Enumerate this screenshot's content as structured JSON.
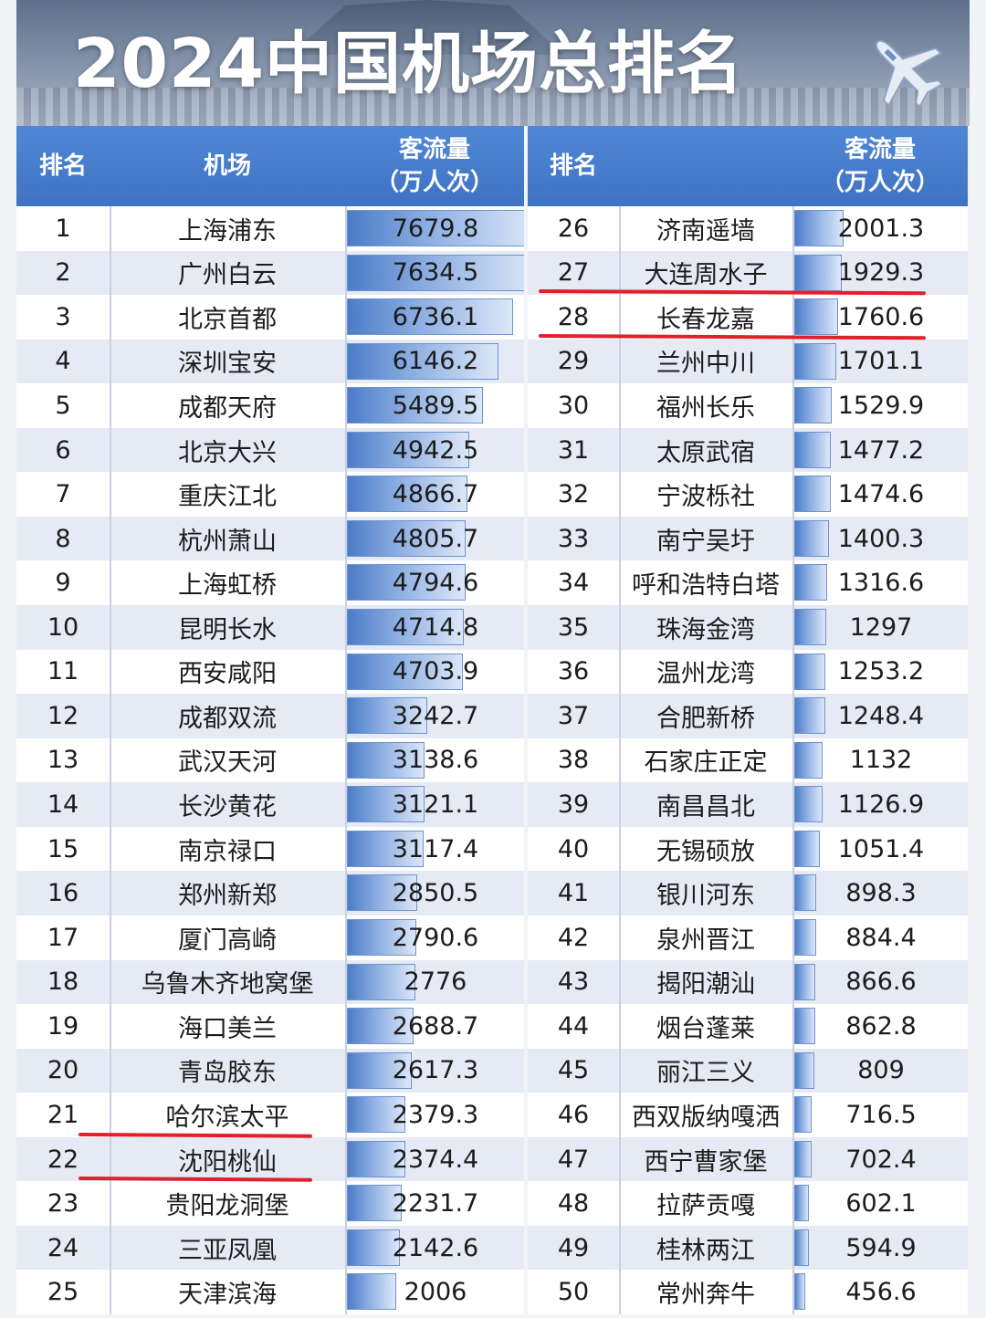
{
  "title": "2024中国机场总排名",
  "title_icon": "airplane-icon",
  "headers": {
    "rank": "排名",
    "airport": "机场",
    "traffic_line1": "客流量",
    "traffic_line2": "（万人次）"
  },
  "colors": {
    "header": "#4a7fd0",
    "bar": "#4b7cc8",
    "highlight": "#e0202a"
  },
  "highlighted_ranks": [
    21,
    22,
    27,
    28
  ],
  "chart_data": {
    "type": "table",
    "title": "2024中国机场总排名",
    "columns": [
      "排名",
      "机场",
      "客流量（万人次）"
    ],
    "unit": "万人次",
    "rows": [
      {
        "rank": "1",
        "airport": "上海浦东",
        "traffic": "7679.8"
      },
      {
        "rank": "2",
        "airport": "广州白云",
        "traffic": "7634.5"
      },
      {
        "rank": "3",
        "airport": "北京首都",
        "traffic": "6736.1"
      },
      {
        "rank": "4",
        "airport": "深圳宝安",
        "traffic": "6146.2"
      },
      {
        "rank": "5",
        "airport": "成都天府",
        "traffic": "5489.5"
      },
      {
        "rank": "6",
        "airport": "北京大兴",
        "traffic": "4942.5"
      },
      {
        "rank": "7",
        "airport": "重庆江北",
        "traffic": "4866.7"
      },
      {
        "rank": "8",
        "airport": "杭州萧山",
        "traffic": "4805.7"
      },
      {
        "rank": "9",
        "airport": "上海虹桥",
        "traffic": "4794.6"
      },
      {
        "rank": "10",
        "airport": "昆明长水",
        "traffic": "4714.8"
      },
      {
        "rank": "11",
        "airport": "西安咸阳",
        "traffic": "4703.9"
      },
      {
        "rank": "12",
        "airport": "成都双流",
        "traffic": "3242.7"
      },
      {
        "rank": "13",
        "airport": "武汉天河",
        "traffic": "3138.6"
      },
      {
        "rank": "14",
        "airport": "长沙黄花",
        "traffic": "3121.1"
      },
      {
        "rank": "15",
        "airport": "南京禄口",
        "traffic": "3117.4"
      },
      {
        "rank": "16",
        "airport": "郑州新郑",
        "traffic": "2850.5"
      },
      {
        "rank": "17",
        "airport": "厦门高崎",
        "traffic": "2790.6"
      },
      {
        "rank": "18",
        "airport": "乌鲁木齐地窝堡",
        "traffic": "2776"
      },
      {
        "rank": "19",
        "airport": "海口美兰",
        "traffic": "2688.7"
      },
      {
        "rank": "20",
        "airport": "青岛胶东",
        "traffic": "2617.3"
      },
      {
        "rank": "21",
        "airport": "哈尔滨太平",
        "traffic": "2379.3"
      },
      {
        "rank": "22",
        "airport": "沈阳桃仙",
        "traffic": "2374.4"
      },
      {
        "rank": "23",
        "airport": "贵阳龙洞堡",
        "traffic": "2231.7"
      },
      {
        "rank": "24",
        "airport": "三亚凤凰",
        "traffic": "2142.6"
      },
      {
        "rank": "25",
        "airport": "天津滨海",
        "traffic": "2006"
      },
      {
        "rank": "26",
        "airport": "济南遥墙",
        "traffic": "2001.3"
      },
      {
        "rank": "27",
        "airport": "大连周水子",
        "traffic": "1929.3"
      },
      {
        "rank": "28",
        "airport": "长春龙嘉",
        "traffic": "1760.6"
      },
      {
        "rank": "29",
        "airport": "兰州中川",
        "traffic": "1701.1"
      },
      {
        "rank": "30",
        "airport": "福州长乐",
        "traffic": "1529.9"
      },
      {
        "rank": "31",
        "airport": "太原武宿",
        "traffic": "1477.2"
      },
      {
        "rank": "32",
        "airport": "宁波栎社",
        "traffic": "1474.6"
      },
      {
        "rank": "33",
        "airport": "南宁吴圩",
        "traffic": "1400.3"
      },
      {
        "rank": "34",
        "airport": "呼和浩特白塔",
        "traffic": "1316.6"
      },
      {
        "rank": "35",
        "airport": "珠海金湾",
        "traffic": "1297"
      },
      {
        "rank": "36",
        "airport": "温州龙湾",
        "traffic": "1253.2"
      },
      {
        "rank": "37",
        "airport": "合肥新桥",
        "traffic": "1248.4"
      },
      {
        "rank": "38",
        "airport": "石家庄正定",
        "traffic": "1132"
      },
      {
        "rank": "39",
        "airport": "南昌昌北",
        "traffic": "1126.9"
      },
      {
        "rank": "40",
        "airport": "无锡硕放",
        "traffic": "1051.4"
      },
      {
        "rank": "41",
        "airport": "银川河东",
        "traffic": "898.3"
      },
      {
        "rank": "42",
        "airport": "泉州晋江",
        "traffic": "884.4"
      },
      {
        "rank": "43",
        "airport": "揭阳潮汕",
        "traffic": "866.6"
      },
      {
        "rank": "44",
        "airport": "烟台蓬莱",
        "traffic": "862.8"
      },
      {
        "rank": "45",
        "airport": "丽江三义",
        "traffic": "809"
      },
      {
        "rank": "46",
        "airport": "西双版纳嘎洒",
        "traffic": "716.5"
      },
      {
        "rank": "47",
        "airport": "西宁曹家堡",
        "traffic": "702.4"
      },
      {
        "rank": "48",
        "airport": "拉萨贡嘎",
        "traffic": "602.1"
      },
      {
        "rank": "49",
        "airport": "桂林两江",
        "traffic": "594.9"
      },
      {
        "rank": "50",
        "airport": "常州奔牛",
        "traffic": "456.6"
      }
    ]
  }
}
